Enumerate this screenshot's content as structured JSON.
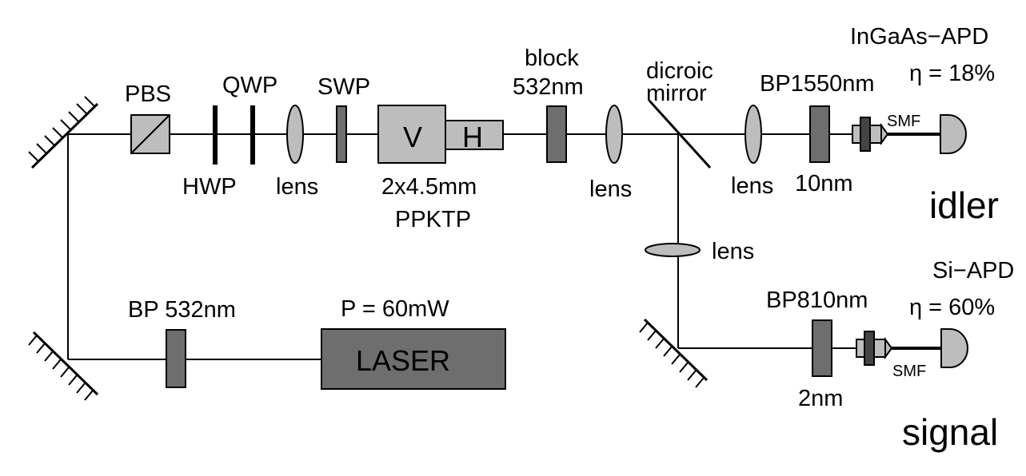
{
  "labels": {
    "pbs": "PBS",
    "qwp": "QWP",
    "hwp": "HWP",
    "swp": "SWP",
    "lens1": "lens",
    "crystal_v": "V",
    "crystal_h": "H",
    "crystal_size": "2x4.5mm",
    "crystal_name": "PPKTP",
    "block_line1": "block",
    "block_line2": "532nm",
    "lens2": "lens",
    "dichroic_line1": "dicroic",
    "dichroic_line2": "mirror",
    "lens_idler": "lens",
    "bp_idler": "BP1550nm",
    "bp_idler_width": "10nm",
    "smf_idler": "SMF",
    "det_idler_name": "InGaAs−APD",
    "det_idler_eff": "η  = 18%",
    "idler": "idler",
    "lens_signal": "lens",
    "bp_signal": "BP810nm",
    "bp_signal_width": "2nm",
    "smf_signal": "SMF",
    "det_signal_name": "Si−APD",
    "det_signal_eff": "η  = 60%",
    "signal": "signal",
    "bp_pump": "BP 532nm",
    "laser_power": "P = 60mW",
    "laser": "LASER"
  },
  "colors": {
    "light_gray": "#bdbdbd",
    "dark_gray": "#6e6e6e",
    "black": "#000000"
  }
}
